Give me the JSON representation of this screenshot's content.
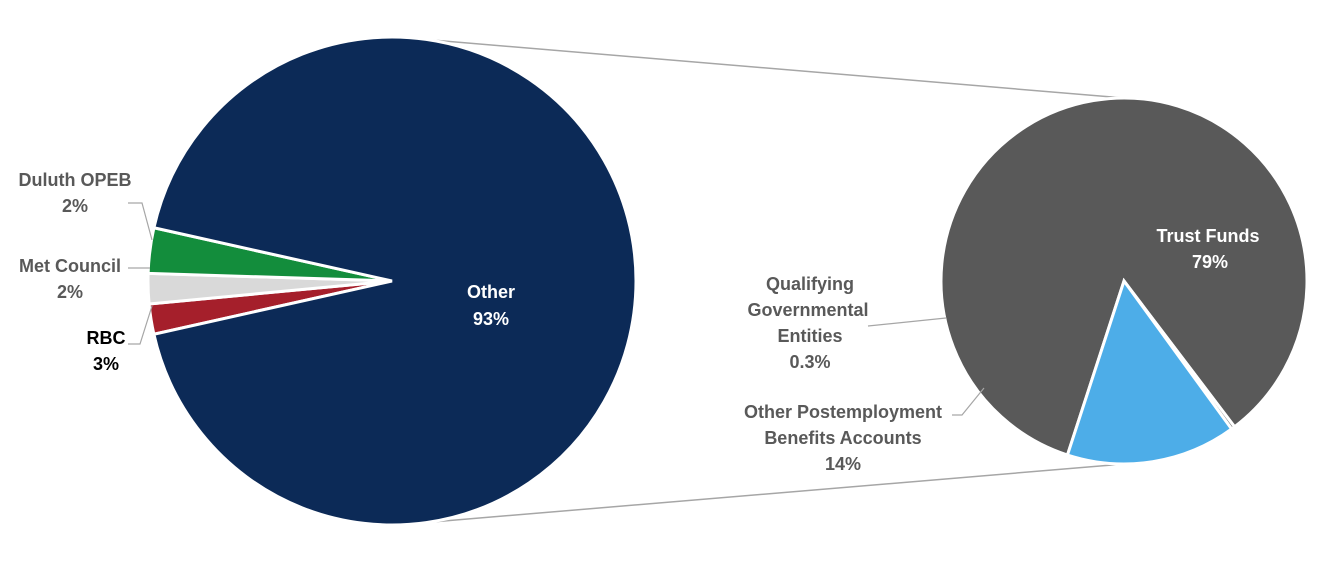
{
  "chart_data": [
    {
      "type": "pie",
      "categories": [
        "Other",
        "Duluth OPEB",
        "Met Council",
        "RBC"
      ],
      "values": [
        93,
        2,
        2,
        3
      ],
      "value_labels": [
        "93%",
        "2%",
        "2%",
        "3%"
      ],
      "colors": [
        "#0c2a57",
        "#a51f2b",
        "#d9d9d9",
        "#138d3c"
      ],
      "label_colors": [
        "#ffffff",
        "#595959",
        "#595959",
        "#000000"
      ],
      "exploded_slice": "Other"
    },
    {
      "type": "pie",
      "categories": [
        "Trust Funds",
        "Qualifying Governmental Entities",
        "Other Postemployment Benefits Accounts"
      ],
      "values": [
        79,
        0.3,
        14
      ],
      "value_labels": [
        "79%",
        "0.3%",
        "14%"
      ],
      "colors": [
        "#595959",
        "#6e6e6e",
        "#4dade8"
      ],
      "label_colors": [
        "#ffffff",
        "#595959",
        "#595959"
      ]
    }
  ]
}
